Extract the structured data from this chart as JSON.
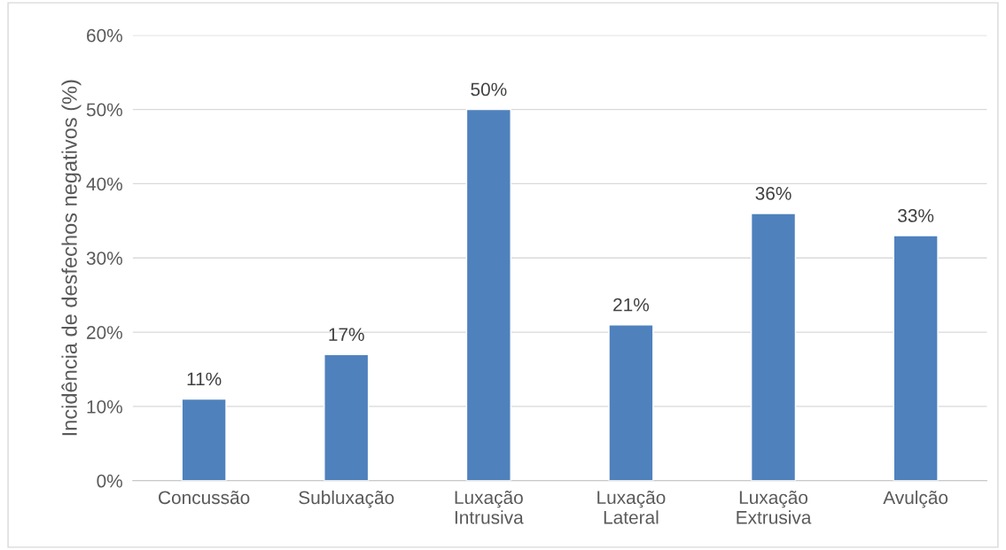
{
  "chart_data": {
    "type": "bar",
    "ylabel": "Incidência de desfechos negativos (%)",
    "categories": [
      "Concussão",
      "Subluxação",
      "Luxação\nIntrusiva",
      "Luxação\nLateral",
      "Luxação\nExtrusiva",
      "Avulção"
    ],
    "values": [
      11,
      17,
      50,
      21,
      36,
      33
    ],
    "value_labels": [
      "11%",
      "17%",
      "50%",
      "21%",
      "36%",
      "33%"
    ],
    "color": "#4f81bd",
    "ylim": [
      0,
      60
    ],
    "yticks": [
      {
        "value": 0,
        "label": "0%"
      },
      {
        "value": 10,
        "label": "10%"
      },
      {
        "value": 20,
        "label": "20%"
      },
      {
        "value": 30,
        "label": "30%"
      },
      {
        "value": 40,
        "label": "40%"
      },
      {
        "value": 50,
        "label": "50%"
      },
      {
        "value": 60,
        "label": "60%"
      }
    ],
    "grid": "y",
    "legend": false
  }
}
